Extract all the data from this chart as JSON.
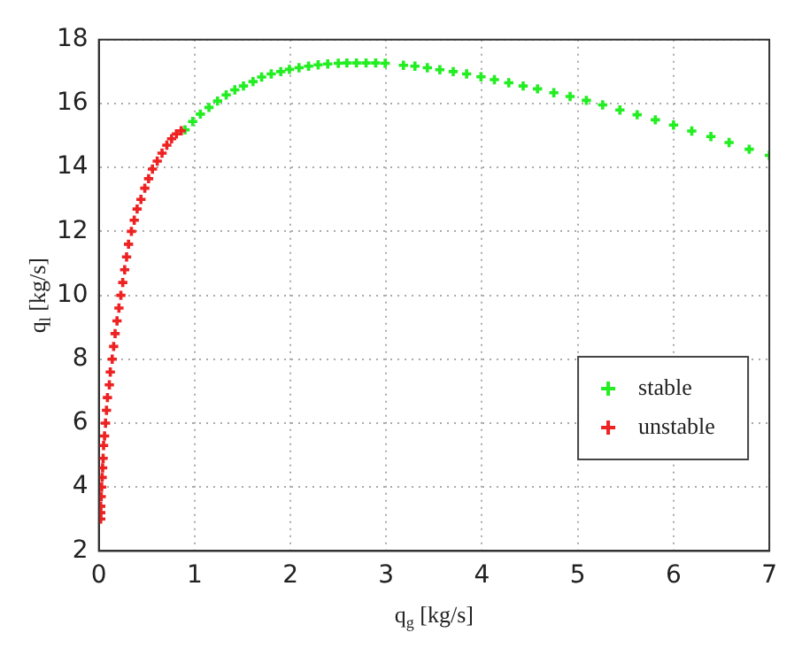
{
  "chart_data": {
    "type": "scatter",
    "xlabel": "q$_{g}$ [kg/s]",
    "ylabel": "q$_{l}$ [kg/s]",
    "xlim": [
      0,
      7
    ],
    "ylim": [
      2,
      18
    ],
    "xticks": [
      0,
      1,
      2,
      3,
      4,
      5,
      6,
      7
    ],
    "yticks": [
      2,
      4,
      6,
      8,
      10,
      12,
      14,
      16,
      18
    ],
    "grid": true,
    "legend": "right",
    "marker": "cross",
    "series": [
      {
        "name": "stable",
        "color": "#22ee22",
        "x": [
          0.9,
          0.98,
          1.06,
          1.15,
          1.24,
          1.33,
          1.42,
          1.51,
          1.61,
          1.7,
          1.8,
          1.9,
          1.99,
          2.09,
          2.19,
          2.29,
          2.39,
          2.5,
          2.59,
          2.69,
          2.79,
          2.89,
          2.99,
          3.18,
          3.3,
          3.43,
          3.56,
          3.7,
          3.84,
          3.99,
          4.13,
          4.28,
          4.43,
          4.58,
          4.75,
          4.92,
          5.09,
          5.26,
          5.44,
          5.62,
          5.81,
          6.0,
          6.19,
          6.39,
          6.58,
          6.79,
          7.0
        ],
        "values": [
          15.18,
          15.44,
          15.67,
          15.88,
          16.08,
          16.27,
          16.43,
          16.55,
          16.69,
          16.83,
          16.93,
          17.0,
          17.07,
          17.12,
          17.17,
          17.21,
          17.24,
          17.26,
          17.27,
          17.27,
          17.27,
          17.27,
          17.26,
          17.2,
          17.17,
          17.12,
          17.06,
          17.0,
          16.93,
          16.84,
          16.75,
          16.65,
          16.55,
          16.46,
          16.34,
          16.22,
          16.1,
          15.96,
          15.8,
          15.65,
          15.49,
          15.33,
          15.14,
          14.97,
          14.78,
          14.57,
          14.38
        ]
      },
      {
        "name": "unstable",
        "color": "#ee2222",
        "x": [
          0.02,
          0.02,
          0.02,
          0.025,
          0.03,
          0.035,
          0.04,
          0.045,
          0.05,
          0.06,
          0.07,
          0.08,
          0.09,
          0.11,
          0.12,
          0.14,
          0.155,
          0.17,
          0.19,
          0.21,
          0.23,
          0.25,
          0.27,
          0.29,
          0.31,
          0.34,
          0.37,
          0.4,
          0.44,
          0.48,
          0.52,
          0.56,
          0.61,
          0.66,
          0.71,
          0.76,
          0.81,
          0.86
        ],
        "values": [
          3.0,
          3.2,
          3.4,
          3.7,
          4.0,
          4.3,
          4.6,
          4.9,
          5.3,
          5.6,
          6.0,
          6.4,
          6.8,
          7.2,
          7.6,
          8.0,
          8.4,
          8.8,
          9.2,
          9.6,
          10.0,
          10.4,
          10.8,
          11.2,
          11.6,
          12.0,
          12.35,
          12.7,
          13.0,
          13.35,
          13.65,
          13.95,
          14.2,
          14.45,
          14.7,
          14.9,
          15.05,
          15.15
        ]
      }
    ]
  }
}
